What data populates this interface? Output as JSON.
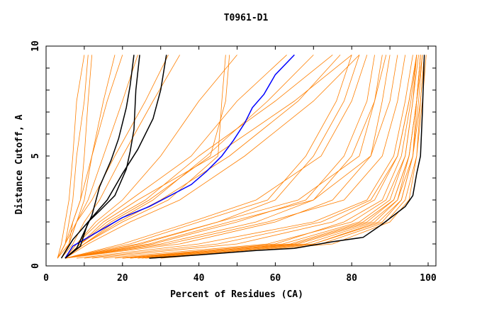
{
  "chart_data": {
    "type": "line",
    "title": "T0961-D1",
    "xlabel": "Percent of Residues (CA)",
    "ylabel": "Distance Cutoff, A",
    "xlim": [
      0,
      100
    ],
    "ylim": [
      0,
      10
    ],
    "xticks": [
      0,
      20,
      40,
      60,
      80,
      100
    ],
    "yticks": [
      0,
      5,
      10
    ],
    "grid": false,
    "legend": "none",
    "colors": {
      "others": "#ff7f00",
      "highlight_black": "#000000",
      "highlight_blue": "#0000ff"
    },
    "orange_y_levels": [
      0.35,
      1,
      2,
      3,
      5,
      7.5,
      9.6
    ],
    "orange_series_x": [
      [
        3,
        5,
        6,
        7,
        8,
        10,
        11
      ],
      [
        3,
        4,
        5,
        6,
        7,
        8,
        10
      ],
      [
        4,
        6,
        7,
        9,
        10,
        11,
        12
      ],
      [
        3,
        5,
        7,
        9,
        12,
        16,
        20
      ],
      [
        3,
        6,
        8,
        11,
        15,
        20,
        24
      ],
      [
        4,
        6,
        8,
        10,
        12,
        15,
        18
      ],
      [
        3,
        5,
        8,
        12,
        18,
        26,
        32
      ],
      [
        4,
        7,
        10,
        14,
        20,
        28,
        35
      ],
      [
        5,
        9,
        16,
        26,
        40,
        60,
        75
      ],
      [
        5,
        10,
        18,
        28,
        42,
        58,
        70
      ],
      [
        5,
        9,
        15,
        24,
        44,
        65,
        80
      ],
      [
        5,
        8,
        14,
        22,
        38,
        50,
        63
      ],
      [
        5,
        10,
        20,
        32,
        45,
        46,
        47
      ],
      [
        5,
        9,
        17,
        27,
        43,
        47,
        48
      ],
      [
        5,
        11,
        22,
        35,
        52,
        70,
        82
      ],
      [
        5,
        8,
        13,
        20,
        30,
        40,
        50
      ],
      [
        5,
        10,
        19,
        30,
        48,
        66,
        77
      ],
      [
        5,
        25,
        45,
        60,
        70,
        78,
        82
      ],
      [
        5,
        22,
        40,
        58,
        68,
        76,
        80
      ],
      [
        5,
        30,
        55,
        70,
        80,
        86,
        89
      ],
      [
        5,
        28,
        50,
        68,
        78,
        84,
        86
      ],
      [
        5,
        20,
        38,
        55,
        72,
        80,
        84
      ],
      [
        5,
        35,
        60,
        75,
        85,
        90,
        92
      ],
      [
        5,
        32,
        58,
        78,
        88,
        92,
        94
      ],
      [
        5,
        27,
        48,
        70,
        85,
        88,
        90
      ],
      [
        5,
        24,
        45,
        66,
        82,
        86,
        88
      ],
      [
        25,
        70,
        88,
        93,
        96,
        97.5,
        98.5
      ],
      [
        22,
        68,
        86,
        92,
        95,
        97,
        98
      ],
      [
        20,
        65,
        84,
        91,
        95,
        97,
        98
      ],
      [
        28,
        72,
        89,
        94,
        97,
        98,
        99
      ],
      [
        18,
        62,
        82,
        90,
        94,
        96,
        97.5
      ],
      [
        30,
        75,
        90,
        95,
        97,
        98.5,
        99.5
      ],
      [
        24,
        66,
        85,
        92,
        96,
        97,
        98
      ],
      [
        15,
        58,
        80,
        89,
        94,
        96,
        97
      ],
      [
        20,
        60,
        78,
        88,
        93,
        95.5,
        97
      ],
      [
        26,
        70,
        87,
        93,
        96,
        98,
        99
      ],
      [
        12,
        50,
        75,
        86,
        92,
        95,
        97
      ],
      [
        22,
        64,
        83,
        91,
        95,
        97,
        98.5
      ],
      [
        8,
        40,
        70,
        84,
        91,
        94,
        96
      ],
      [
        10,
        45,
        72,
        85,
        92,
        95,
        97
      ]
    ],
    "highlight_series": [
      {
        "color": "#000000",
        "points": [
          [
            27,
            0.35
          ],
          [
            40,
            0.5
          ],
          [
            55,
            0.7
          ],
          [
            65,
            0.8
          ],
          [
            75,
            1.1
          ],
          [
            83,
            1.3
          ],
          [
            88,
            1.9
          ],
          [
            94,
            2.7
          ],
          [
            96,
            3.2
          ],
          [
            97,
            4.2
          ],
          [
            98,
            5
          ],
          [
            98.5,
            7
          ],
          [
            99,
            9.6
          ]
        ]
      },
      {
        "color": "#0000ff",
        "points": [
          [
            5,
            0.35
          ],
          [
            7,
            0.9
          ],
          [
            10,
            1.2
          ],
          [
            15,
            1.7
          ],
          [
            20,
            2.2
          ],
          [
            27,
            2.7
          ],
          [
            38,
            3.7
          ],
          [
            42,
            4.3
          ],
          [
            46,
            5.0
          ],
          [
            49,
            5.7
          ],
          [
            52,
            6.5
          ],
          [
            54,
            7.2
          ],
          [
            57,
            7.8
          ],
          [
            60,
            8.7
          ],
          [
            65,
            9.6
          ]
        ]
      },
      {
        "color": "#000000",
        "points": [
          [
            5,
            0.35
          ],
          [
            8,
            0.8
          ],
          [
            12,
            2.3
          ],
          [
            14,
            3.6
          ],
          [
            17,
            4.8
          ],
          [
            19,
            5.8
          ],
          [
            21,
            7.2
          ],
          [
            22,
            8.2
          ],
          [
            23,
            9.6
          ]
        ]
      },
      {
        "color": "#000000",
        "points": [
          [
            5,
            0.35
          ],
          [
            9,
            0.9
          ],
          [
            11,
            2
          ],
          [
            14,
            2.5
          ],
          [
            18,
            3.2
          ],
          [
            21,
            4.4
          ],
          [
            22,
            5.2
          ],
          [
            23,
            6.2
          ],
          [
            23.5,
            8
          ],
          [
            24.5,
            9.6
          ]
        ]
      },
      {
        "color": "#000000",
        "points": [
          [
            4,
            0.35
          ],
          [
            7,
            1.2
          ],
          [
            10,
            1.8
          ],
          [
            12,
            2.2
          ],
          [
            16,
            3
          ],
          [
            20,
            4.2
          ],
          [
            24,
            5.3
          ],
          [
            28,
            6.7
          ],
          [
            30,
            8
          ],
          [
            31.5,
            9.6
          ]
        ]
      }
    ]
  }
}
